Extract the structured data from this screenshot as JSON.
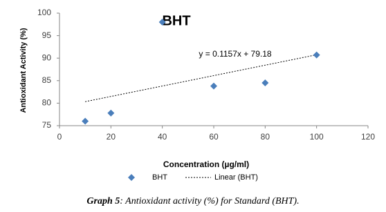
{
  "chart_data": {
    "type": "scatter",
    "title": "BHT",
    "x_label": "Concentration (µg/ml)",
    "y_label": "Antioxidant Activity (%)",
    "series": [
      {
        "name": "BHT",
        "color": "#4a7ebb",
        "x": [
          10,
          20,
          40,
          60,
          80,
          100
        ],
        "values": [
          76,
          77.8,
          98,
          83.8,
          84.5,
          90.7
        ]
      }
    ],
    "trendline": {
      "name": "Linear (BHT)",
      "equation": "y = 0.1157x + 79.18",
      "slope": 0.1157,
      "intercept": 79.18
    },
    "xlim": [
      0,
      120
    ],
    "xticks": [
      0,
      20,
      40,
      60,
      80,
      100,
      120
    ],
    "ylim": [
      75,
      100
    ],
    "yticks": [
      75,
      80,
      85,
      90,
      95,
      100
    ],
    "grid": false,
    "legend": "bottom",
    "caption_label": "Graph 5",
    "caption_text": ": Antioxidant activity (%) for Standard (BHT)."
  }
}
